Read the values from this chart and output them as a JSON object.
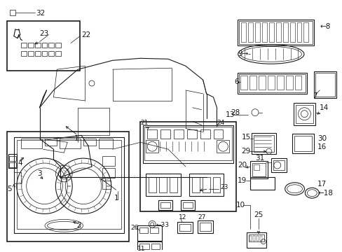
{
  "bg_color": "#ffffff",
  "line_color": "#1a1a1a",
  "fig_width": 4.89,
  "fig_height": 3.6,
  "dpi": 100,
  "label_fs": 7.5,
  "lw_main": 0.8,
  "lw_thin": 0.5,
  "lw_thick": 1.2
}
